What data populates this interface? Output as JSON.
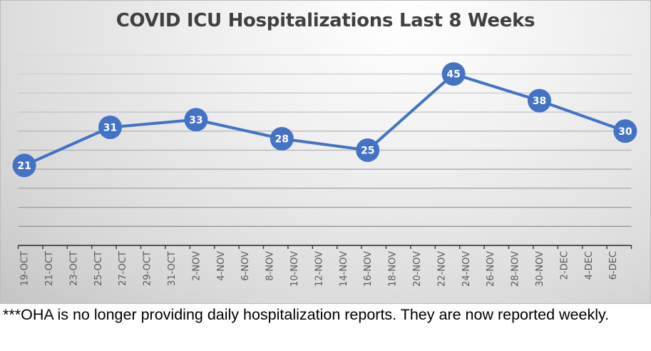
{
  "chart_data": {
    "type": "line",
    "title": "COVID ICU Hospitalizations Last 8 Weeks",
    "xlabel": "",
    "ylabel": "",
    "ylim": [
      0,
      50
    ],
    "grid": true,
    "y_gridline_step": 5,
    "x_tick_labels": [
      "19-OCT",
      "21-OCT",
      "23-OCT",
      "25-OCT",
      "27-OCT",
      "29-OCT",
      "31-OCT",
      "2-NOV",
      "4-NOV",
      "6-NOV",
      "8-NOV",
      "10-NOV",
      "12-NOV",
      "14-NOV",
      "16-NOV",
      "18-NOV",
      "20-NOV",
      "22-NOV",
      "24-NOV",
      "26-NOV",
      "28-NOV",
      "30-NOV",
      "2-DEC",
      "4-DEC",
      "6-DEC"
    ],
    "x_range_days": [
      0,
      49
    ],
    "series": [
      {
        "name": "ICU Hospitalizations",
        "color": "#4472C4",
        "points": [
          {
            "date": "19-OCT",
            "day": 0,
            "value": 21
          },
          {
            "date": "26-OCT",
            "day": 7,
            "value": 31
          },
          {
            "date": "2-NOV",
            "day": 14,
            "value": 33
          },
          {
            "date": "9-NOV",
            "day": 21,
            "value": 28
          },
          {
            "date": "16-NOV",
            "day": 28,
            "value": 25
          },
          {
            "date": "23-NOV",
            "day": 35,
            "value": 45
          },
          {
            "date": "30-NOV",
            "day": 42,
            "value": 38
          },
          {
            "date": "7-DEC",
            "day": 49,
            "value": 30
          }
        ]
      }
    ]
  },
  "footnote": "***OHA is no longer providing daily hospitalization reports.  They are now reported weekly."
}
